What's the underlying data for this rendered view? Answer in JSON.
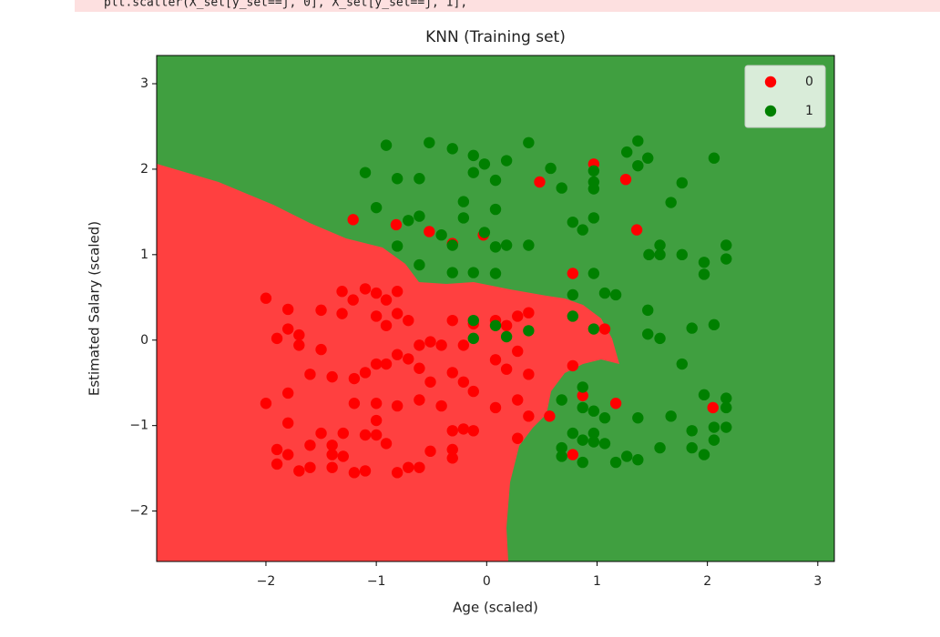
{
  "code_line": "plt.scatter(X_set[y_set==j, 0], X_set[y_set==j, 1],",
  "chart_data": {
    "type": "scatter",
    "title": "KNN (Training set)",
    "x_label": "Age (scaled)",
    "y_label": "Estimated Salary (scaled)",
    "xlim": [
      -2.99,
      3.15
    ],
    "ylim": [
      -2.59,
      3.33
    ],
    "xticks": [
      {
        "value": -2,
        "label": "−2"
      },
      {
        "value": -1,
        "label": "−1"
      },
      0,
      1,
      2,
      3
    ],
    "yticks": [
      {
        "value": -2,
        "label": "−2"
      },
      {
        "value": -1,
        "label": "−1"
      },
      0,
      1,
      2,
      3
    ],
    "legend": "upper right",
    "series": [
      {
        "name": "0",
        "color": "#ff0000",
        "x": [
          -1.21,
          -0.82,
          -0.52,
          -0.31,
          -0.03,
          0.48,
          0.97,
          1.26,
          1.36,
          0.78,
          1.17,
          2.05,
          0.57,
          0.87,
          0.78,
          1.07,
          0.78,
          -2.0,
          -1.8,
          -1.9,
          -1.8,
          -1.7,
          -1.7,
          -1.5,
          -1.5,
          -1.31,
          -1.31,
          -1.21,
          -1.1,
          -1.0,
          -0.91,
          -0.81,
          -1.0,
          -0.91,
          -0.81,
          -0.71,
          -0.61,
          -0.51,
          -0.41,
          -0.31,
          -0.21,
          -0.12,
          0.08,
          0.18,
          0.28,
          0.38,
          0.28,
          0.08,
          0.18,
          0.38,
          0.28,
          0.08,
          -0.12,
          -0.21,
          -0.31,
          -0.41,
          -0.51,
          -0.61,
          -0.71,
          -0.81,
          -0.91,
          -1.0,
          -1.1,
          -1.2,
          -1.4,
          -1.6,
          -1.8,
          -2.0,
          -1.8,
          -1.2,
          -1.0,
          -0.81,
          -0.61,
          -1.0,
          -1.1,
          -1.3,
          -1.5,
          -1.0,
          -0.91,
          -0.31,
          -0.21,
          -0.12,
          -0.31,
          -0.51,
          -1.9,
          -1.9,
          -1.8,
          -1.6,
          -1.4,
          -1.3,
          -1.4,
          -1.6,
          -1.7,
          -1.4,
          -1.2,
          -1.1,
          -0.81,
          -0.71,
          -0.61,
          -0.31,
          0.28,
          0.38
        ],
        "values": [
          1.41,
          1.35,
          1.27,
          1.13,
          1.23,
          1.85,
          2.06,
          1.88,
          1.29,
          0.78,
          -0.74,
          -0.79,
          -0.89,
          -0.65,
          -0.3,
          0.13,
          -1.34,
          0.49,
          0.36,
          0.02,
          0.13,
          0.06,
          -0.06,
          -0.11,
          0.35,
          0.57,
          0.31,
          0.47,
          0.6,
          0.55,
          0.47,
          0.57,
          0.28,
          0.17,
          0.31,
          0.23,
          -0.06,
          -0.02,
          -0.06,
          0.23,
          -0.06,
          0.19,
          0.23,
          0.17,
          0.28,
          0.32,
          -0.13,
          -0.23,
          -0.34,
          -0.4,
          -0.7,
          -0.79,
          -0.6,
          -0.49,
          -0.38,
          -0.77,
          -0.49,
          -0.33,
          -0.22,
          -0.17,
          -0.28,
          -0.28,
          -0.38,
          -0.45,
          -0.43,
          -0.4,
          -0.62,
          -0.74,
          -0.97,
          -0.74,
          -0.74,
          -0.77,
          -0.7,
          -0.94,
          -1.11,
          -1.09,
          -1.09,
          -1.11,
          -1.21,
          -1.06,
          -1.04,
          -1.06,
          -1.28,
          -1.3,
          -1.28,
          -1.45,
          -1.34,
          -1.23,
          -1.23,
          -1.36,
          -1.34,
          -1.49,
          -1.53,
          -1.49,
          -1.55,
          -1.53,
          -1.55,
          -1.49,
          -1.49,
          -1.38,
          -1.15,
          -0.89
        ]
      },
      {
        "name": "1",
        "color": "#008000",
        "x": [
          -0.91,
          -0.52,
          -0.31,
          -0.12,
          0.38,
          0.18,
          -0.02,
          -1.1,
          -0.81,
          -0.61,
          -0.12,
          0.08,
          0.58,
          0.68,
          0.97,
          0.97,
          0.97,
          1.37,
          1.27,
          1.46,
          1.37,
          1.77,
          2.06,
          -1.0,
          -0.71,
          -0.61,
          -0.21,
          -0.21,
          0.08,
          -0.02,
          -0.41,
          -0.31,
          0.08,
          0.18,
          0.38,
          -0.81,
          -0.61,
          -0.31,
          -0.12,
          0.08,
          0.78,
          0.87,
          0.97,
          1.67,
          1.57,
          1.47,
          1.57,
          1.77,
          1.97,
          1.97,
          2.17,
          2.17,
          0.97,
          1.07,
          1.17,
          0.78,
          1.46,
          1.46,
          1.57,
          1.86,
          2.06,
          1.77,
          1.97,
          2.17,
          2.17,
          0.78,
          0.97,
          -0.12,
          -0.12,
          0.08,
          0.18,
          0.38,
          0.87,
          0.87,
          0.68,
          0.97,
          1.07,
          1.37,
          1.67,
          1.86,
          2.06,
          2.17,
          2.06,
          1.86,
          1.97,
          1.57,
          1.27,
          1.37,
          1.17,
          0.78,
          0.87,
          0.97,
          1.07,
          0.68,
          0.68,
          0.87,
          0.97
        ],
        "values": [
          2.28,
          2.31,
          2.24,
          2.16,
          2.31,
          2.1,
          2.06,
          1.96,
          1.89,
          1.89,
          1.96,
          1.87,
          2.01,
          1.78,
          1.98,
          1.85,
          1.77,
          2.33,
          2.2,
          2.13,
          2.04,
          1.84,
          2.13,
          1.55,
          1.4,
          1.45,
          1.62,
          1.43,
          1.53,
          1.26,
          1.23,
          1.11,
          1.09,
          1.11,
          1.11,
          1.1,
          0.88,
          0.79,
          0.79,
          0.78,
          1.38,
          1.29,
          1.43,
          1.61,
          1.11,
          1.0,
          1.0,
          1.0,
          0.91,
          0.77,
          1.11,
          0.95,
          0.78,
          0.55,
          0.53,
          0.53,
          0.35,
          0.07,
          0.02,
          0.14,
          0.18,
          -0.28,
          -0.64,
          -0.68,
          -0.79,
          0.28,
          0.13,
          0.23,
          0.02,
          0.17,
          0.04,
          0.11,
          -0.55,
          -0.79,
          -0.7,
          -0.83,
          -0.91,
          -0.91,
          -0.89,
          -1.06,
          -1.02,
          -1.02,
          -1.17,
          -1.26,
          -1.34,
          -1.26,
          -1.36,
          -1.4,
          -1.43,
          -1.09,
          -1.17,
          -1.09,
          -1.21,
          -1.26,
          -1.36,
          -1.43,
          -1.19
        ]
      }
    ]
  }
}
